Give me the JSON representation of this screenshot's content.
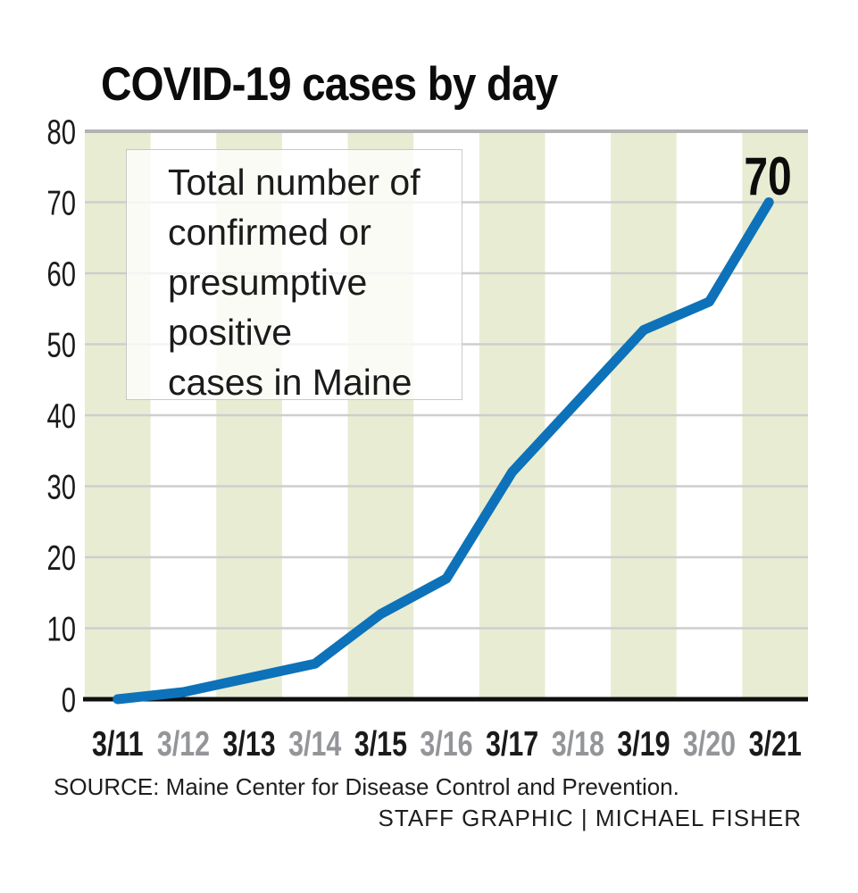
{
  "title": "COVID-19 cases by day",
  "annotation": "Total number of\nconfirmed or\npresumptive\npositive\ncases in Maine",
  "source": "SOURCE: Maine Center for Disease Control and Prevention.",
  "credit": "STAFF GRAPHIC | MICHAEL FISHER",
  "colors": {
    "line": "#0d72b9",
    "band": "#e8ecd3",
    "grid": "#cecece",
    "grid_top": "#b3b3b3",
    "axis": "#0f0f0f",
    "label_dark": "#1a1a1a",
    "label_gray": "#939598",
    "title_text": "#0c0c0c"
  },
  "chart_data": {
    "type": "line",
    "title": "COVID-19 cases by day",
    "annotation": "Total number of confirmed or presumptive positive cases in Maine",
    "categories": [
      "3/11",
      "3/12",
      "3/13",
      "3/14",
      "3/15",
      "3/16",
      "3/17",
      "3/18",
      "3/19",
      "3/20",
      "3/21"
    ],
    "values": [
      0,
      1,
      3,
      5,
      12,
      17,
      32,
      42,
      52,
      56,
      70
    ],
    "xlabel": "",
    "ylabel": "",
    "ylim": [
      0,
      80
    ],
    "ytick_step": 10,
    "grid": true,
    "legend_position": "none",
    "column_shading": "alternating day bands, first day shaded",
    "x_tick_color_pattern": [
      "dark",
      "gray"
    ],
    "end_point_label": "70"
  }
}
